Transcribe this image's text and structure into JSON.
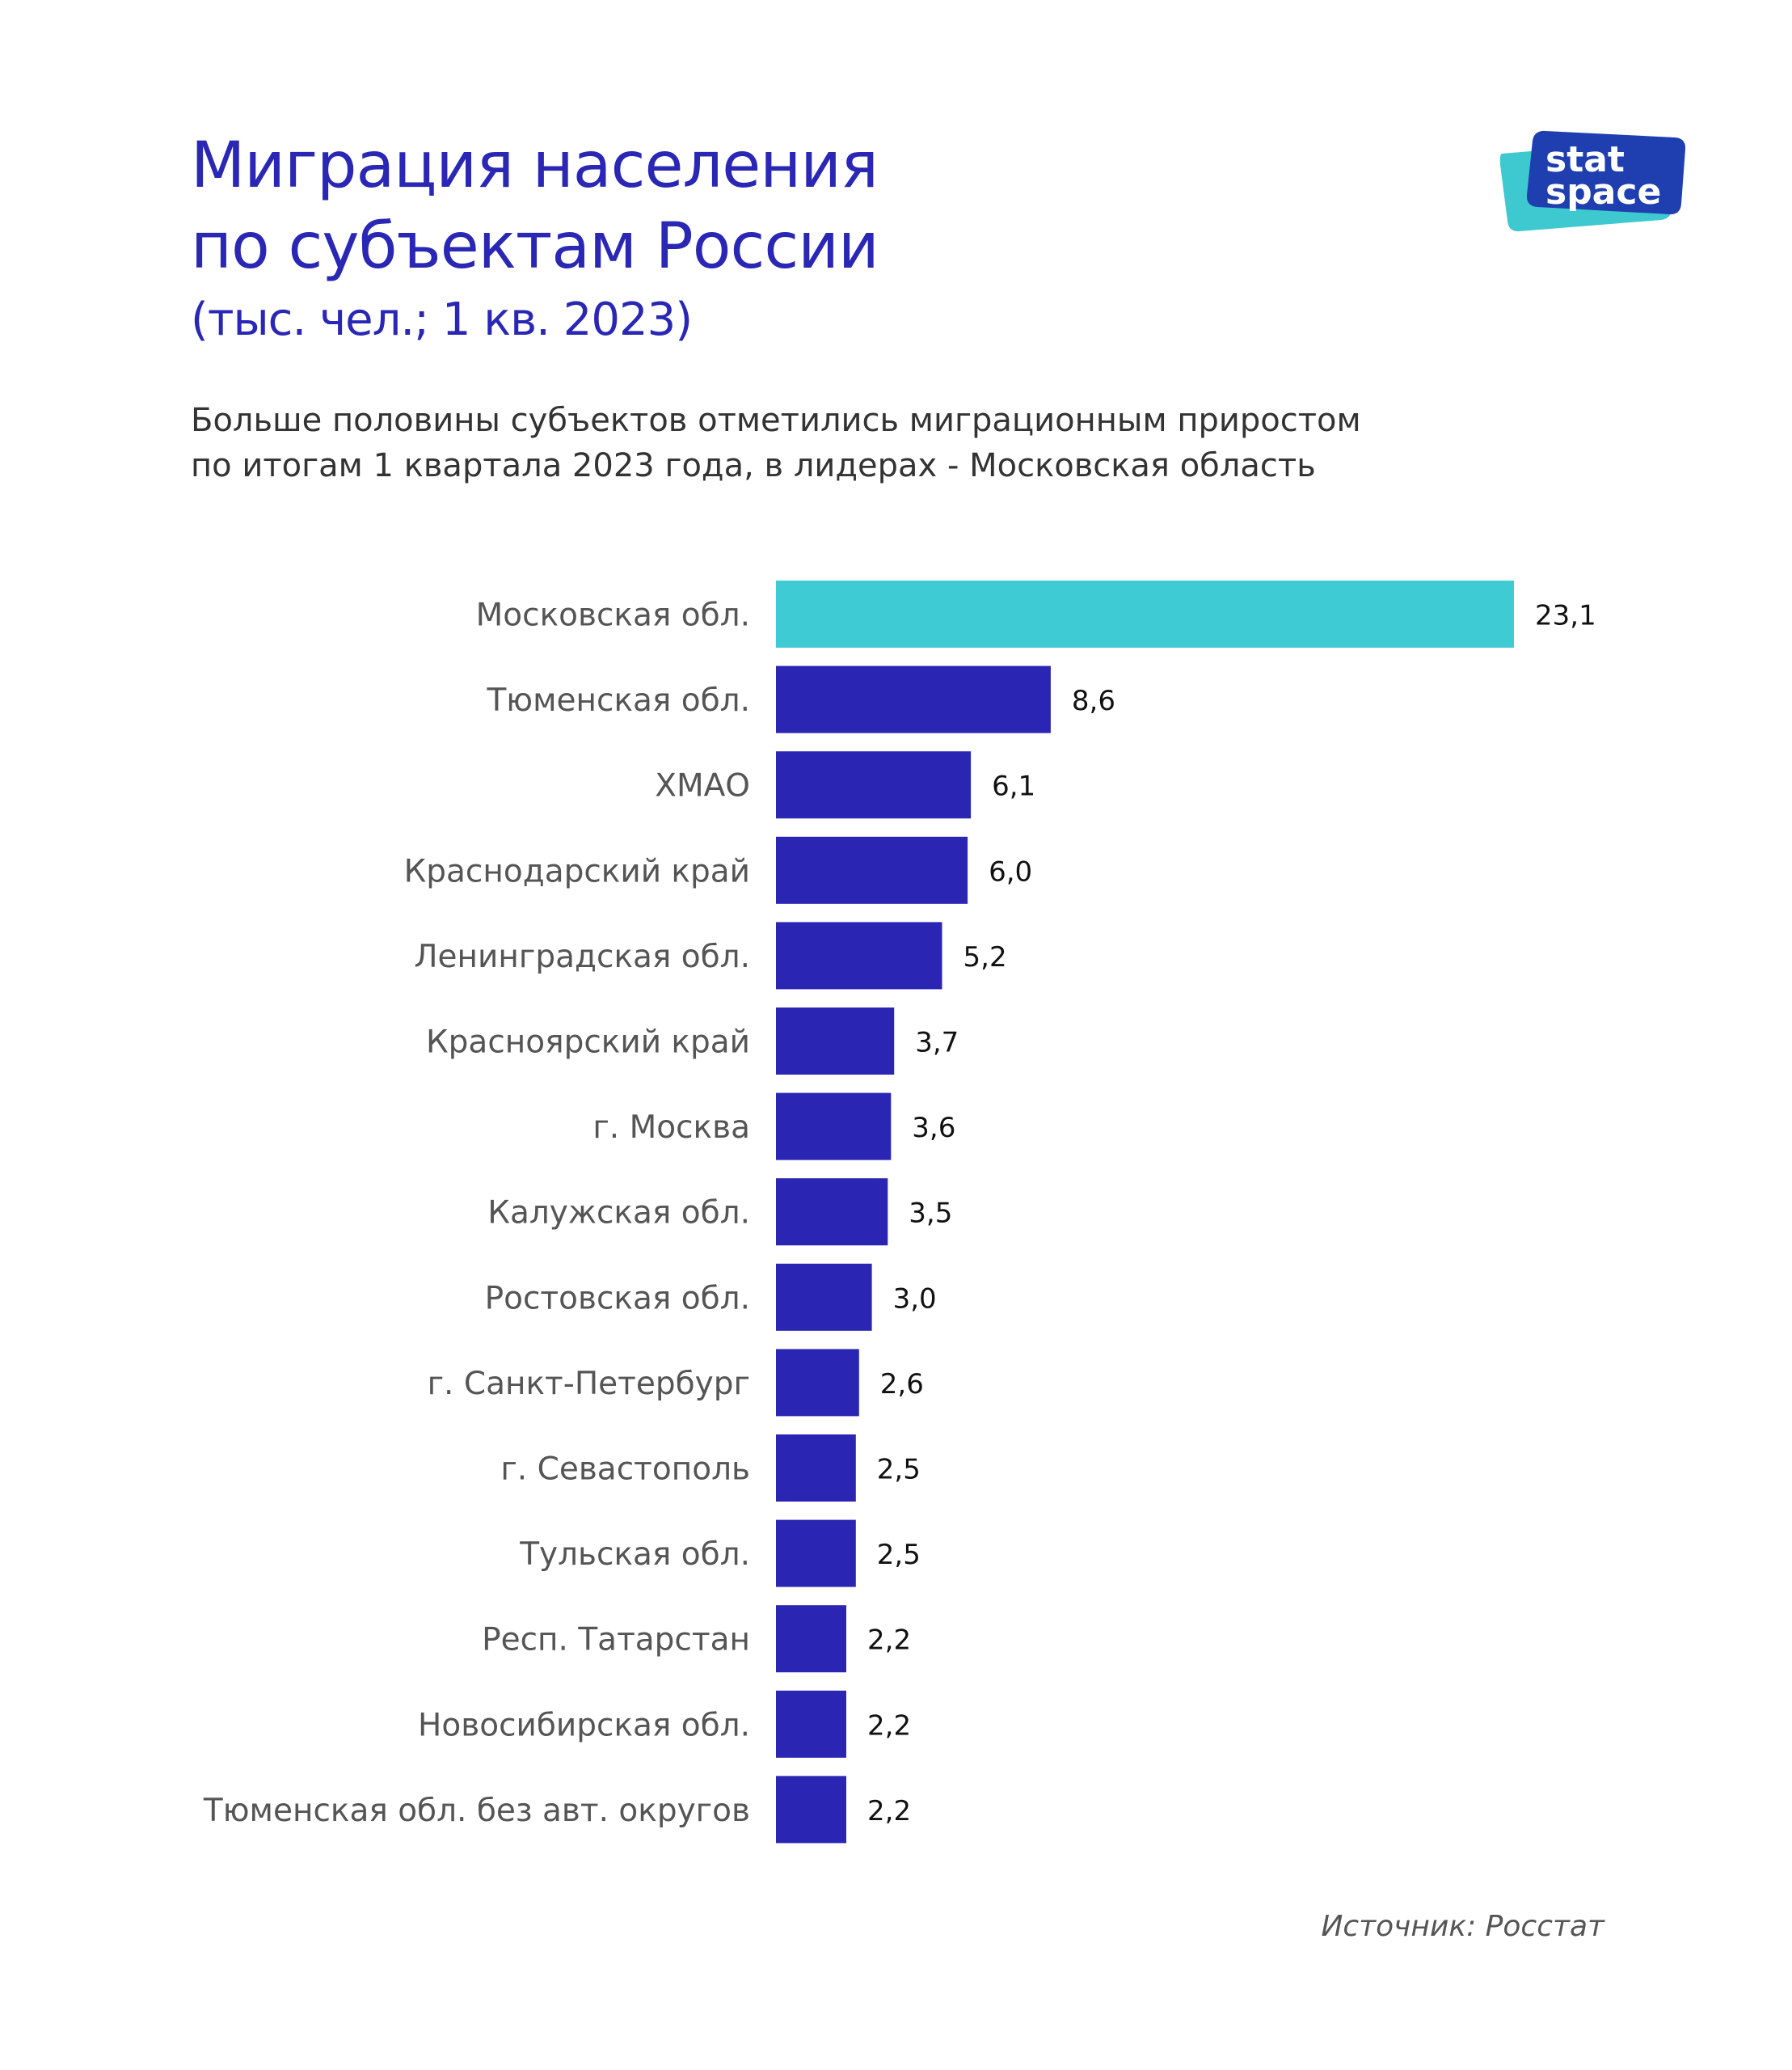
{
  "header": {
    "title_line1": "Миграция населения",
    "title_line2": "по субъектам России",
    "unit_line": "(тыс. чел.; 1 кв. 2023)",
    "lead_line1": "Больше половины субъектов отметились миграционным приростом",
    "lead_line2": "по итогам 1 квартала 2023 года, в лидерах - Московская область"
  },
  "logo": {
    "line1": "stat",
    "line2": "space",
    "colors": {
      "back": "#3ec8cf",
      "front": "#1f3fb0",
      "text": "#ffffff"
    }
  },
  "footer": {
    "source": "Источник: Росстат"
  },
  "chart_data": {
    "type": "bar",
    "orientation": "horizontal",
    "categories": [
      "Московская обл.",
      "Тюменская обл.",
      "ХМАО",
      "Краснодарский край",
      "Ленинградская обл.",
      "Красноярский край",
      "г. Москва",
      "Калужская обл.",
      "Ростовская обл.",
      "г. Санкт-Петербург",
      "г. Севастополь",
      "Тульская обл.",
      "Респ. Татарстан",
      "Новосибирская обл.",
      "Тюменская обл. без авт. округов"
    ],
    "values": [
      23.1,
      8.6,
      6.1,
      6.0,
      5.2,
      3.7,
      3.6,
      3.5,
      3.0,
      2.6,
      2.5,
      2.5,
      2.2,
      2.2,
      2.2
    ],
    "value_labels": [
      "23,1",
      "8,6",
      "6,1",
      "6,0",
      "5,2",
      "3,7",
      "3,6",
      "3,5",
      "3,0",
      "2,6",
      "2,5",
      "2,5",
      "2,2",
      "2,2",
      "2,2"
    ],
    "highlight_index": 0,
    "colors": {
      "highlight": "#3fcbd3",
      "bar": "#2a25b3"
    },
    "grid": false,
    "legend": "none"
  }
}
